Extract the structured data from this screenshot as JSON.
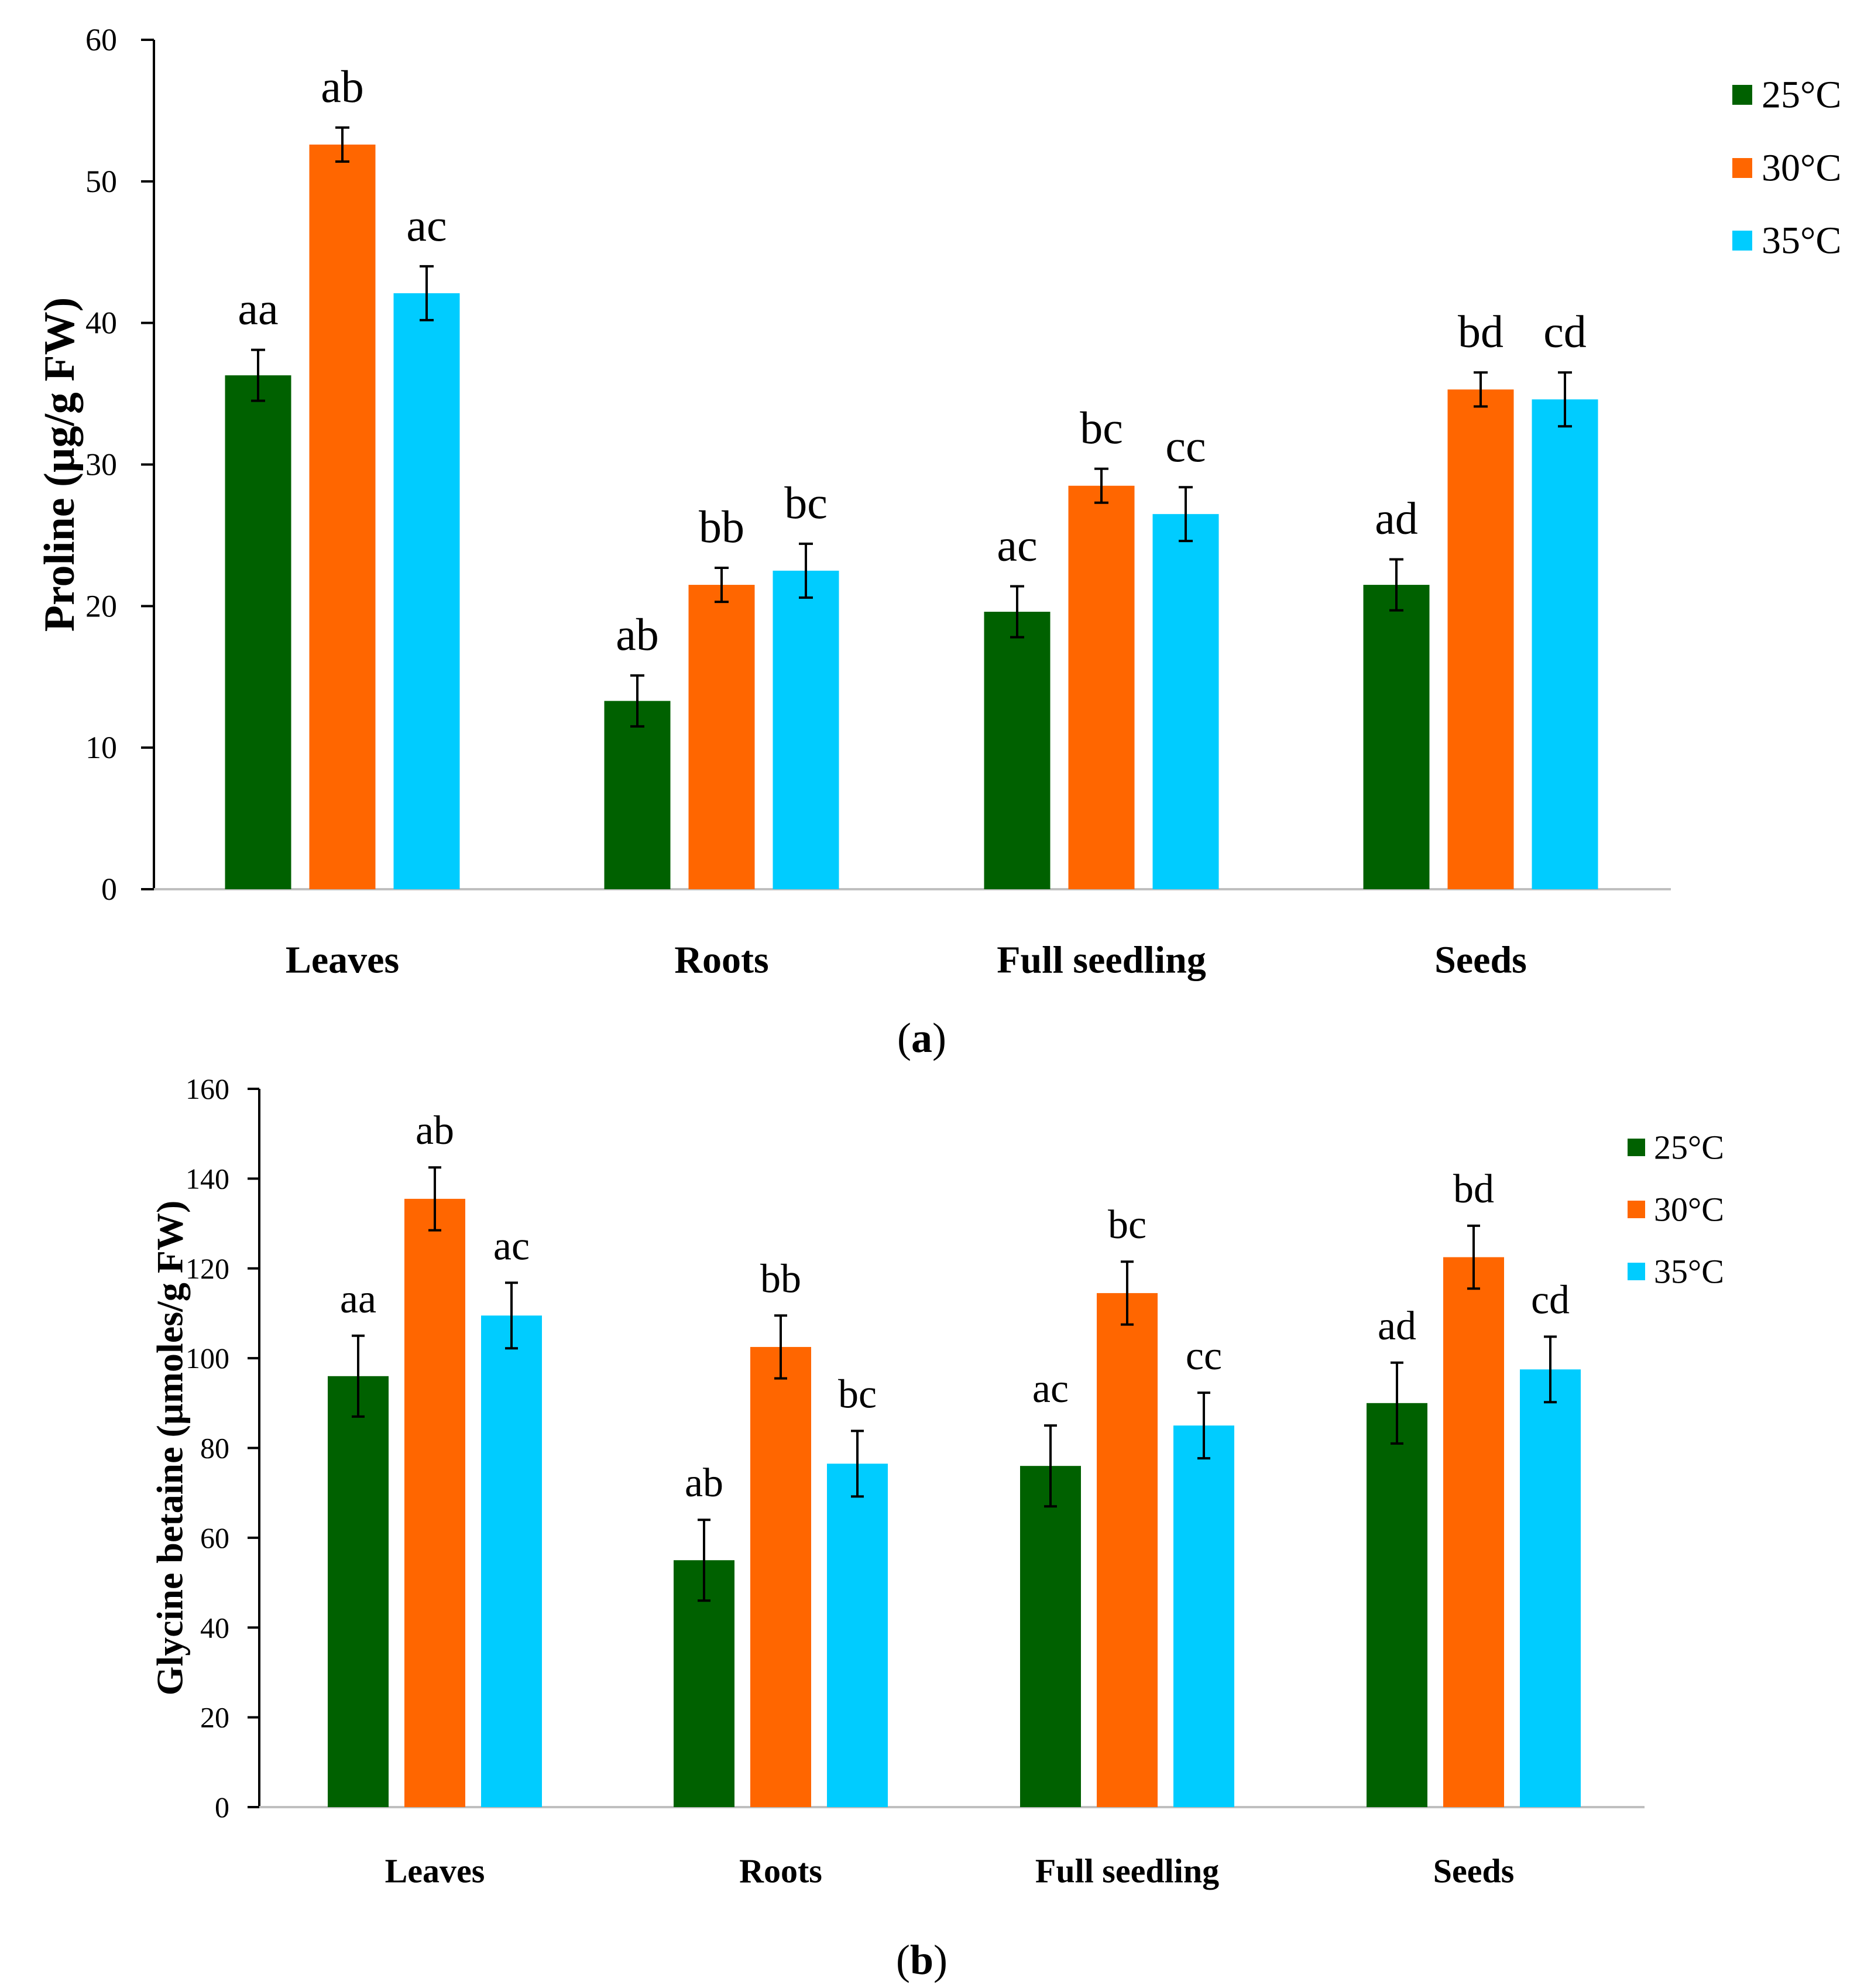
{
  "chart_data": [
    {
      "type": "bar",
      "id": "a",
      "panel_label": "a",
      "title": "",
      "xlabel": "",
      "ylabel": "Proline (µg/g FW)",
      "ylim": [
        0,
        60
      ],
      "yticks": [
        0,
        10,
        20,
        30,
        40,
        50,
        60
      ],
      "categories": [
        "Leaves",
        "Roots",
        "Full seedling",
        "Seeds"
      ],
      "series": [
        {
          "name": "25°C",
          "color": "#006100",
          "values": [
            36.3,
            13.3,
            19.6,
            21.5
          ],
          "errors": [
            1.8,
            1.8,
            1.8,
            1.8
          ],
          "labels": [
            "aa",
            "ab",
            "ac",
            "ad"
          ]
        },
        {
          "name": "30°C",
          "color": "#ff6600",
          "values": [
            52.6,
            21.5,
            28.5,
            35.3
          ],
          "errors": [
            1.2,
            1.2,
            1.2,
            1.2
          ],
          "labels": [
            "ab",
            "bb",
            "bc",
            "bd"
          ]
        },
        {
          "name": "35°C",
          "color": "#00ccff",
          "values": [
            42.1,
            22.5,
            26.5,
            34.6
          ],
          "errors": [
            1.9,
            1.9,
            1.9,
            1.9
          ],
          "labels": [
            "ac",
            "bc",
            "cc",
            "cd"
          ]
        }
      ],
      "legend": "right",
      "grid": false
    },
    {
      "type": "bar",
      "id": "b",
      "panel_label": "b",
      "title": "",
      "xlabel": "",
      "ylabel": "Glycine betaine (µmoles/g FW)",
      "ylim": [
        0,
        160
      ],
      "yticks": [
        0,
        20,
        40,
        60,
        80,
        100,
        120,
        140,
        160
      ],
      "categories": [
        "Leaves",
        "Roots",
        "Full seedling",
        "Seeds"
      ],
      "series": [
        {
          "name": "25°C",
          "color": "#006100",
          "values": [
            96,
            55,
            76,
            90
          ],
          "errors": [
            9,
            9,
            9,
            9
          ],
          "labels": [
            "aa",
            "ab",
            "ac",
            "ad"
          ]
        },
        {
          "name": "30°C",
          "color": "#ff6600",
          "values": [
            135.5,
            102.5,
            114.5,
            122.5
          ],
          "errors": [
            7,
            7,
            7,
            7
          ],
          "labels": [
            "ab",
            "bb",
            "bc",
            "bd"
          ]
        },
        {
          "name": "35°C",
          "color": "#00ccff",
          "values": [
            109.5,
            76.5,
            85,
            97.5
          ],
          "errors": [
            7.3,
            7.3,
            7.3,
            7.3
          ],
          "labels": [
            "ac",
            "bc",
            "cc",
            "cd"
          ]
        }
      ],
      "legend": "right",
      "grid": false
    }
  ]
}
